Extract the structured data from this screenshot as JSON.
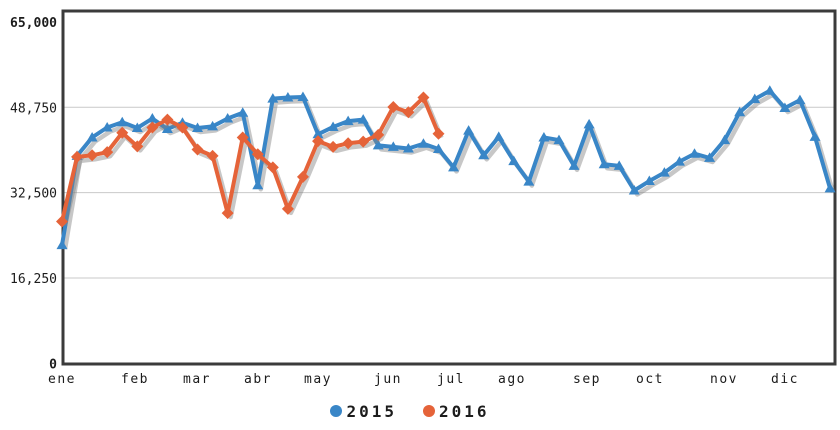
{
  "chart_data": {
    "type": "line",
    "title": "",
    "x_unit": "week",
    "granularity": "weekly (52 weeks of 2015, 26 weeks of 2016)",
    "x_axis": {
      "labels": [
        "ene",
        "feb",
        "mar",
        "abr",
        "may",
        "jun",
        "jul",
        "ago",
        "sep",
        "oct",
        "nov",
        "dic"
      ]
    },
    "y_axis": {
      "min": 0,
      "max": 65000,
      "tick_values": [
        0,
        16250,
        32500,
        48750,
        65000
      ],
      "tick_labels": [
        "0",
        "16,250",
        "32,500",
        "48,750",
        "65,000"
      ],
      "grid": true
    },
    "legend_position": "bottom-center",
    "series": [
      {
        "name": "2015",
        "color": "#3986c7",
        "marker": "triangle",
        "values": [
          22500,
          39500,
          43000,
          44900,
          45900,
          44800,
          46600,
          44600,
          45800,
          44800,
          45100,
          46600,
          47700,
          33900,
          50400,
          50600,
          50700,
          43600,
          45000,
          46100,
          46400,
          41500,
          41200,
          40900,
          41800,
          40800,
          37300,
          44300,
          39600,
          43100,
          38500,
          34600,
          43000,
          42500,
          37600,
          45500,
          37900,
          37600,
          32900,
          34700,
          36300,
          38400,
          39900,
          39100,
          42500,
          47800,
          50300,
          51900,
          48600,
          50100,
          43100,
          33300
        ]
      },
      {
        "name": "2016",
        "color": "#e56339",
        "marker": "diamond",
        "values": [
          27000,
          39300,
          39600,
          40200,
          43900,
          41300,
          44900,
          46400,
          44900,
          40700,
          39500,
          28600,
          43000,
          39800,
          37300,
          29400,
          35500,
          42300,
          41200,
          41900,
          42200,
          43500,
          48800,
          47800,
          50600,
          43700
        ]
      }
    ],
    "legend": [
      {
        "label": "2015",
        "color": "#3986c7"
      },
      {
        "label": "2016",
        "color": "#e56339"
      }
    ],
    "style": {
      "plot_border_color": "#3b3b3b",
      "grid_color": "#c9c9c9",
      "text_color": "#1c1c1c",
      "shadow_color": "rgba(130,130,130,0.45)",
      "background": "#ffffff"
    }
  }
}
